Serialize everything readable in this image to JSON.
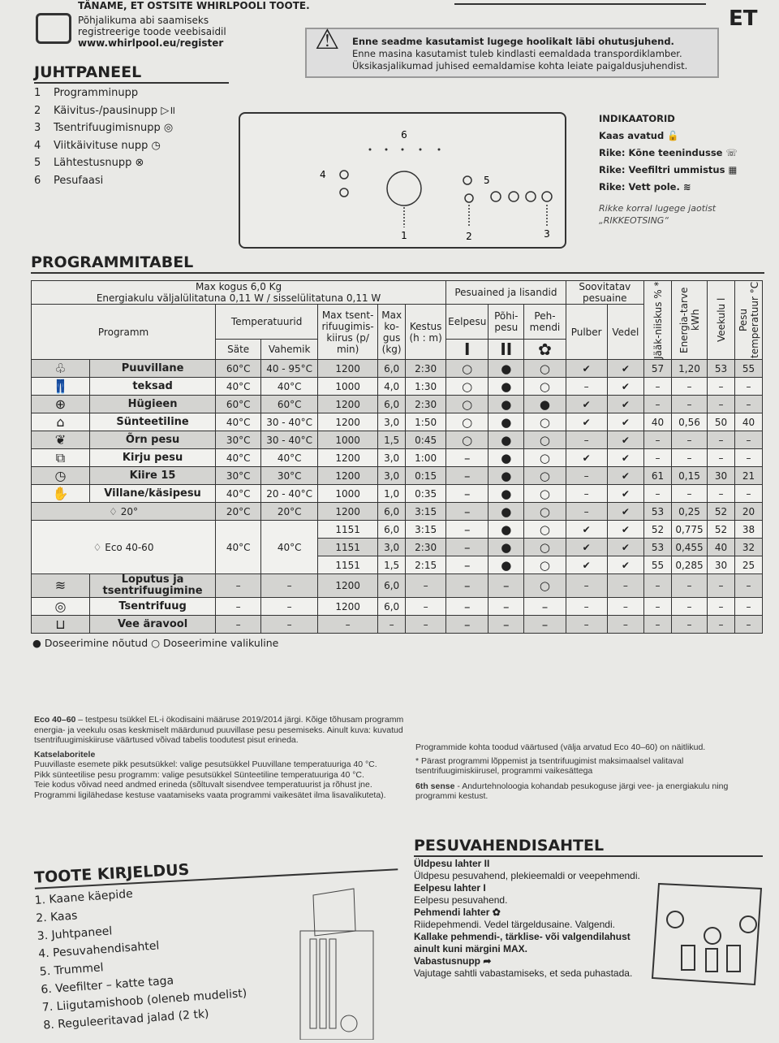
{
  "header": {
    "thanks": "TÄNAME, ET OSTSITE WHIRLPOOLI TOOTE.",
    "register_lines": [
      "Põhjalikuma abi saamiseks",
      "registreerige toode veebisaidil"
    ],
    "url": "www.whirlpool.eu/register",
    "lang": "ET"
  },
  "warning": {
    "icon": "warning-triangle-icon",
    "bold": "Enne seadme kasutamist lugege hoolikalt läbi ohutusjuhend.",
    "lines": [
      "Enne masina kasutamist tuleb kindlasti eemaldada transpordiklamber.",
      "Üksikasjalikumad juhised eemaldamise kohta leiate paigaldusjuhendist."
    ]
  },
  "control_panel": {
    "title": "JUHTPANEEL",
    "items": [
      {
        "n": "1",
        "label": "Programminupp"
      },
      {
        "n": "2",
        "label": "Käivitus-/pausinupp ▷॥"
      },
      {
        "n": "3",
        "label": "Tsentrifuugimisnupp ◎"
      },
      {
        "n": "4",
        "label": "Viitkäivituse nupp ◷"
      },
      {
        "n": "5",
        "label": "Lähtestusnupp ⊗"
      },
      {
        "n": "6",
        "label": "Pesufaasi"
      }
    ],
    "diagram_labels": [
      "1",
      "2",
      "3",
      "4",
      "5",
      "6"
    ]
  },
  "indicators": {
    "title": "INDIKAATORID",
    "items": [
      "Kaas avatud 🔓",
      "Rike: Kõne teenindusse ☏",
      "Rike: Veefiltri ummistus ▦",
      "Rike: Vett pole. ≋"
    ],
    "note": [
      "Rikke korral lugege jaotist",
      "„RIKKEOTSING“"
    ]
  },
  "program_table": {
    "title": "PROGRAMMITABEL",
    "max_load": "Max kogus 6,0 Kg",
    "energy": "Energiakulu väljalülitatuna 0,11 W / sisselülitatuna 0,11 W",
    "headers": {
      "program": "Programm",
      "temp": "Temperatuurid",
      "sate": "Säte",
      "vahemik": "Vahemik",
      "spin": "Max tsent-rifuugimis-kiirus (p/ min)",
      "kg": "Max ko-gus (kg)",
      "kestus": "Kestus (h : m)",
      "detergents": "Pesuained ja lisandid",
      "eelpesu": "Eelpesu",
      "pohipesu": "Põhi-pesu",
      "pehmendi": "Peh-mendi",
      "eelpesu_sym": "I",
      "pohipesu_sym": "II",
      "pehmendi_sym": "✿",
      "recommended": "Soovitatav pesuaine",
      "pulber": "Pulber",
      "vedel": "Vedel",
      "jaak": "Jääk-niiskus % *",
      "energia": "Energia-tarve kWh",
      "vee": "Veekulu l",
      "temp_c": "Pesu temperatuur °C"
    },
    "rows": [
      {
        "icon": "cotton-icon",
        "name": "Puuvillane",
        "sate": "60°C",
        "vahemik": "40 - 95°C",
        "c": [
          [
            "1200",
            "6,0",
            "2:30",
            "○",
            "●",
            "○",
            "✔",
            "✔",
            "57",
            "1,20",
            "53",
            "55"
          ]
        ]
      },
      {
        "icon": "jeans-icon",
        "name": "teksad",
        "sate": "40°C",
        "vahemik": "40°C",
        "c": [
          [
            "1000",
            "4,0",
            "1:30",
            "○",
            "●",
            "○",
            "–",
            "✔",
            "–",
            "–",
            "–",
            "–"
          ]
        ]
      },
      {
        "icon": "hygiene-icon",
        "name": "Hügieen",
        "sate": "60°C",
        "vahemik": "60°C",
        "c": [
          [
            "1200",
            "6,0",
            "2:30",
            "○",
            "●",
            "●",
            "✔",
            "✔",
            "–",
            "–",
            "–",
            "–"
          ]
        ]
      },
      {
        "icon": "synthetic-icon",
        "name": "Sünteetiline",
        "sate": "40°C",
        "vahemik": "30 - 40°C",
        "c": [
          [
            "1200",
            "3,0",
            "1:50",
            "○",
            "●",
            "○",
            "✔",
            "✔",
            "40",
            "0,56",
            "50",
            "40"
          ]
        ]
      },
      {
        "icon": "delicate-icon",
        "name": "Õrn pesu",
        "sate": "30°C",
        "vahemik": "30 - 40°C",
        "c": [
          [
            "1000",
            "1,5",
            "0:45",
            "○",
            "●",
            "○",
            "–",
            "✔",
            "–",
            "–",
            "–",
            "–"
          ]
        ]
      },
      {
        "icon": "mixed-icon",
        "name": "Kirju pesu",
        "sate": "40°C",
        "vahemik": "40°C",
        "c": [
          [
            "1200",
            "3,0",
            "1:00",
            "–",
            "●",
            "○",
            "✔",
            "✔",
            "–",
            "–",
            "–",
            "–"
          ]
        ]
      },
      {
        "icon": "rapid-15-icon",
        "name": "Kiire 15",
        "sate": "30°C",
        "vahemik": "30°C",
        "c": [
          [
            "1200",
            "3,0",
            "0:15",
            "–",
            "●",
            "○",
            "–",
            "✔",
            "61",
            "0,15",
            "30",
            "21"
          ]
        ]
      },
      {
        "icon": "wool-handwash-icon",
        "name": "Villane/käsipesu",
        "sate": "40°C",
        "vahemik": "20 - 40°C",
        "c": [
          [
            "1000",
            "1,0",
            "0:35",
            "–",
            "●",
            "○",
            "–",
            "✔",
            "–",
            "–",
            "–",
            "–"
          ]
        ]
      },
      {
        "icon": "eco-20-icon",
        "name": "20°",
        "sate": "20°C",
        "vahemik": "20°C",
        "c": [
          [
            "1200",
            "6,0",
            "3:15",
            "–",
            "●",
            "○",
            "–",
            "✔",
            "53",
            "0,25",
            "52",
            "20"
          ]
        ]
      },
      {
        "icon": "eco-icon",
        "name": "Eco 40-60",
        "sate": "40°C",
        "vahemik": "40°C",
        "c": [
          [
            "1151",
            "6,0",
            "3:15",
            "–",
            "●",
            "○",
            "✔",
            "✔",
            "52",
            "0,775",
            "52",
            "38"
          ],
          [
            "1151",
            "3,0",
            "2:30",
            "–",
            "●",
            "○",
            "✔",
            "✔",
            "53",
            "0,455",
            "40",
            "32"
          ],
          [
            "1151",
            "1,5",
            "2:15",
            "–",
            "●",
            "○",
            "✔",
            "✔",
            "55",
            "0,285",
            "30",
            "25"
          ]
        ]
      },
      {
        "icon": "rinse-spin-icon",
        "name": "Loputus ja tsentrifuugimine",
        "sate": "–",
        "vahemik": "–",
        "c": [
          [
            "1200",
            "6,0",
            "–",
            "–",
            "–",
            "○",
            "–",
            "–",
            "–",
            "–",
            "–",
            "–"
          ]
        ]
      },
      {
        "icon": "spin-icon",
        "name": "Tsentrifuug",
        "sate": "–",
        "vahemik": "–",
        "c": [
          [
            "1200",
            "6,0",
            "–",
            "–",
            "–",
            "–",
            "–",
            "–",
            "–",
            "–",
            "–",
            "–"
          ]
        ]
      },
      {
        "icon": "drain-icon",
        "name": "Vee äravool",
        "sate": "–",
        "vahemik": "–",
        "c": [
          [
            "–",
            "–",
            "–",
            "–",
            "–",
            "–",
            "–",
            "–",
            "–",
            "–",
            "–",
            "–"
          ]
        ]
      }
    ],
    "legend": "● Doseerimine nõutud ○ Doseerimine valikuline"
  },
  "notes": {
    "eco_bold": "Eco 40–60",
    "eco_text": " – testpesu tsükkel EL-i ökodisaini määruse 2019/2014 järgi. Kõige tõhusam programm energia- ja veekulu osas keskmiselt määrdunud puuvillase pesu pesemiseks. Ainult kuva: kuvatud tsentrifuugimiskiiruse väärtused võivad tabelis toodutest pisut erineda.",
    "lab_title": "Katselaboritele",
    "lab_lines": [
      "Puuvillaste esemete pikk pesutsükkel: valige pesutsükkel Puuvillane temperatuuriga 40 °C.",
      "Pikk sünteetilise pesu programm: valige pesutsükkel Sünteetiline temperatuuriga 40 °C.",
      "Teie kodus võivad need andmed erineda (sõltuvalt sisendvee temperatuurist ja rõhust jne.",
      "Programmi ligilähedase kestuse vaatamiseks vaata programmi vaikesätet ilma lisavalikuteta)."
    ],
    "right1": "Programmide kohta toodud väärtused (välja arvatud Eco 40–60) on näitlikud.",
    "right2": "* Pärast programmi lõppemist ja tsentrifuugimist maksimaalsel valitaval tsentrifuugimiskiirusel, programmi vaikesättega",
    "sense_bold": "6th sense",
    "sense_text": " - Andurtehnoloogia kohandab pesukoguse järgi vee- ja energiakulu ning programmi kestust."
  },
  "product": {
    "title": "TOOTE KIRJELDUS",
    "items": [
      "1. Kaane käepide",
      "2. Kaas",
      "3. Juhtpaneel",
      "4. Pesuvahendisahtel",
      "5. Trummel",
      "6. Veefilter – katte taga",
      "7. Liigutamishoob (oleneb mudelist)",
      "8. Reguleeritavad jalad (2 tk)"
    ],
    "callouts": [
      "1.",
      "2.",
      "3.",
      "4.",
      "5.",
      "6.",
      "7.",
      "8."
    ]
  },
  "drawer": {
    "title": "PESUVAHENDISAHTEL",
    "main_title": "Üldpesu lahter II",
    "main_text": "Üldpesu pesuvahend, plekieemaldi or veepehmendi.",
    "pre_title": "Eelpesu lahter I",
    "pre_text": "Eelpesu pesuvahend.",
    "soft_title": "Pehmendi lahter ✿",
    "soft_text": "Riidepehmendi. Vedel tärgeldusaine. Valgendi.",
    "warn": "Kallake pehmendi-, tärklise- või valgendilahust ainult kuni märgini MAX.",
    "release_title": "Vabastusnupp ➦",
    "release_text": "Vajutage sahtli vabastamiseks, et seda puhastada."
  }
}
